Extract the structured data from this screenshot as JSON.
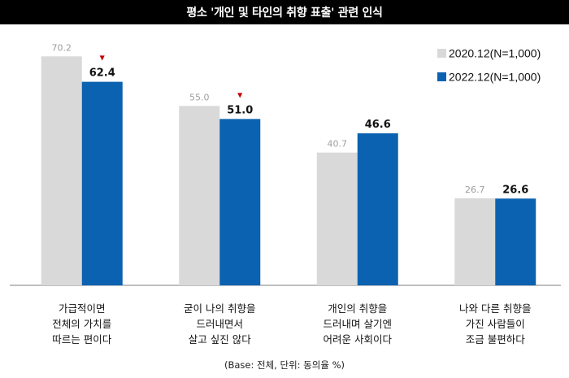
{
  "colors": {
    "series_2020": "#d9d9d9",
    "series_2022": "#0b62b0",
    "label_2020": "#9e9e9e",
    "label_2022": "#111111",
    "decline_marker": "#c00000",
    "axis": "#7f7f7f",
    "title_bg": "#000000",
    "title_text": "#ffffff"
  },
  "chart_data": {
    "type": "bar",
    "title": "평소 '개인 및 타인의 취향 표출' 관련 인식",
    "categories": [
      [
        "가급적이면",
        "전체의 가치를",
        "따르는 편이다"
      ],
      [
        "굳이 나의 취향을",
        "드러내면서",
        "살고 싶진 않다"
      ],
      [
        "개인의 취향을",
        "드러내며 살기엔",
        "어려운 사회이다"
      ],
      [
        "나와 다른 취향을",
        "가진 사람들이",
        "조금 불편하다"
      ]
    ],
    "series": [
      {
        "name": "2020.12(N=1,000)",
        "values": [
          70.2,
          55.0,
          40.7,
          26.7
        ]
      },
      {
        "name": "2022.12(N=1,000)",
        "values": [
          62.4,
          51.0,
          46.6,
          26.6
        ]
      }
    ],
    "value_labels": [
      [
        "70.2",
        "55.0",
        "40.7",
        "26.7"
      ],
      [
        "62.4",
        "51.0",
        "46.6",
        "26.6"
      ]
    ],
    "decline_markers": [
      true,
      true,
      false,
      false
    ],
    "decline_symbol": "▼",
    "ylim": [
      0,
      80
    ],
    "xlabel": "",
    "ylabel": "",
    "grid": false,
    "legend_position": "top-right",
    "footnote": "(Base: 전체, 단위: 동의율 %)"
  }
}
